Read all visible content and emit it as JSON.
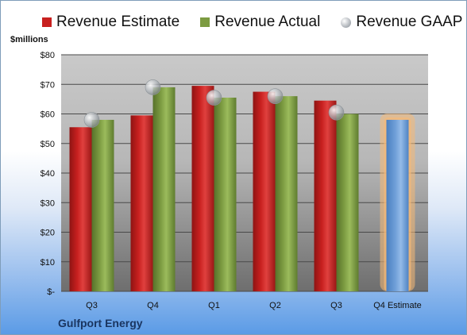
{
  "legend": {
    "estimate": "Revenue Estimate",
    "actual": "Revenue Actual",
    "gaap": "Revenue GAAP"
  },
  "unit_label": "$millions",
  "company": "Gulfport Energy",
  "colors": {
    "estimate": "#c8201f",
    "actual": "#7c9b41",
    "forecast": "#6f9fd8",
    "highlight": "#f5b977",
    "gaap": "#b3b8bd"
  },
  "chart_data": {
    "type": "bar",
    "categories": [
      "Q3",
      "Q4",
      "Q1",
      "Q2",
      "Q3",
      "Q4 Estimate"
    ],
    "series": [
      {
        "name": "Revenue Estimate",
        "values": [
          55.5,
          59.5,
          69.5,
          67.5,
          64.5,
          null
        ]
      },
      {
        "name": "Revenue Actual",
        "values": [
          58,
          69,
          65.5,
          66,
          60,
          58
        ]
      },
      {
        "name": "Revenue GAAP",
        "values": [
          58,
          69,
          65.5,
          66,
          60.5,
          null
        ]
      }
    ],
    "ylabel": "$millions",
    "ylim": [
      0,
      80
    ],
    "yticks": [
      0,
      10,
      20,
      30,
      40,
      50,
      60,
      70,
      80
    ],
    "yticklabels": [
      "$-",
      "$10",
      "$20",
      "$30",
      "$40",
      "$50",
      "$60",
      "$70",
      "$80"
    ],
    "grid": true,
    "legend_position": "top"
  }
}
